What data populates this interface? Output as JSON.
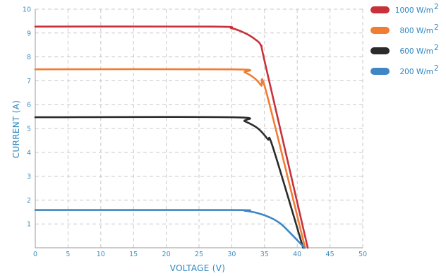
{
  "chart_data": {
    "type": "line",
    "title": "",
    "xlabel": "VOLTAGE (V)",
    "ylabel": "CURRENT (A)",
    "xlim": [
      0,
      50
    ],
    "ylim": [
      0,
      10
    ],
    "xticks": [
      "0",
      "5",
      "10",
      "15",
      "20",
      "25",
      "30",
      "35",
      "40",
      "45",
      "50"
    ],
    "yticks": [
      "1",
      "2",
      "3",
      "4",
      "5",
      "6",
      "7",
      "8",
      "9",
      "10"
    ],
    "grid": true,
    "legend_position": "right",
    "series": [
      {
        "name": "1000 W/m",
        "sup": "2",
        "color": "#c8313a",
        "x": [
          0,
          27,
          30,
          32,
          33.5,
          34.5,
          35.2,
          41.6
        ],
        "y": [
          9.27,
          9.27,
          9.2,
          9.0,
          8.75,
          8.45,
          7.6,
          0
        ]
      },
      {
        "name": "800 W/m",
        "sup": "2",
        "color": "#f07d33",
        "x": [
          0,
          30,
          32,
          33.5,
          34.5,
          35.3,
          41.2
        ],
        "y": [
          7.48,
          7.48,
          7.35,
          7.1,
          6.8,
          6.5,
          0
        ]
      },
      {
        "name": "600 W/m",
        "sup": "2",
        "color": "#2b2b2b",
        "x": [
          0,
          30,
          32,
          34,
          35.5,
          36.3,
          40.9
        ],
        "y": [
          5.47,
          5.47,
          5.3,
          5.0,
          4.55,
          4.2,
          0
        ]
      },
      {
        "name": "200 W/m",
        "sup": "2",
        "color": "#3f86c4",
        "x": [
          0,
          30,
          32,
          34,
          36,
          37.5,
          39,
          41.1
        ],
        "y": [
          1.58,
          1.58,
          1.55,
          1.45,
          1.25,
          1.0,
          0.6,
          0
        ]
      }
    ]
  }
}
